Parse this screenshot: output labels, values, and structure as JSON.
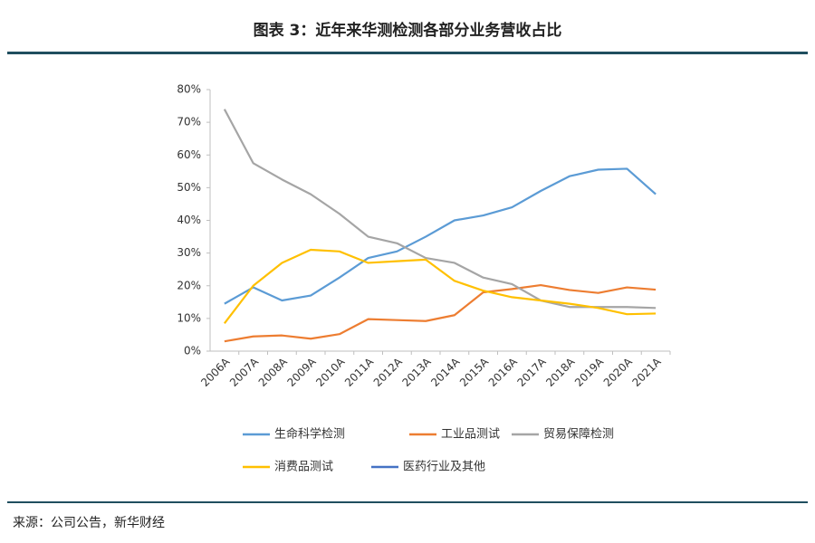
{
  "chart_data": {
    "type": "line",
    "title": "图表 3：近年来华测检测各部分业务营收占比",
    "source": "来源：公司公告，新华财经",
    "categories": [
      "2006A",
      "2007A",
      "2008A",
      "2009A",
      "2010A",
      "2011A",
      "2012A",
      "2013A",
      "2014A",
      "2015A",
      "2016A",
      "2017A",
      "2018A",
      "2019A",
      "2020A",
      "2021A"
    ],
    "series": [
      {
        "name": "生命科学检测",
        "color": "#5b9bd5",
        "values": [
          14.5,
          19.5,
          15.5,
          17,
          22.5,
          28.5,
          30.5,
          35,
          40,
          41.5,
          44,
          49,
          53.5,
          55.5,
          55.8,
          48
        ]
      },
      {
        "name": "工业品测试",
        "color": "#ed7d31",
        "values": [
          3,
          4.5,
          4.8,
          3.8,
          5.2,
          9.8,
          9.5,
          9.2,
          11,
          18,
          19,
          20.2,
          18.7,
          17.8,
          19.5,
          18.8
        ]
      },
      {
        "name": "贸易保障检测",
        "color": "#a5a5a5",
        "values": [
          74,
          57.5,
          52.5,
          48,
          42,
          35,
          33,
          28.5,
          27,
          22.5,
          20.5,
          15.5,
          13.5,
          13.5,
          13.5,
          13.2
        ]
      },
      {
        "name": "消费品测试",
        "color": "#ffc000",
        "values": [
          8.5,
          20,
          27,
          31,
          30.5,
          27,
          27.5,
          28,
          21.5,
          18.5,
          16.5,
          15.5,
          14.5,
          13.2,
          11.3,
          11.5
        ]
      },
      {
        "name": "医药行业及其他",
        "color": "#4472c4",
        "values": [
          null,
          null,
          null,
          null,
          null,
          null,
          null,
          null,
          null,
          null,
          null,
          null,
          null,
          null,
          null,
          null
        ]
      }
    ],
    "ylim": [
      0,
      80
    ],
    "yticks": [
      {
        "value": 0,
        "label": "0%"
      },
      {
        "value": 10,
        "label": "10%"
      },
      {
        "value": 20,
        "label": "20%"
      },
      {
        "value": 30,
        "label": "30%"
      },
      {
        "value": 40,
        "label": "40%"
      },
      {
        "value": 50,
        "label": "50%"
      },
      {
        "value": 60,
        "label": "60%"
      },
      {
        "value": 70,
        "label": "70%"
      },
      {
        "value": 80,
        "label": "80%"
      }
    ],
    "grid": false
  }
}
